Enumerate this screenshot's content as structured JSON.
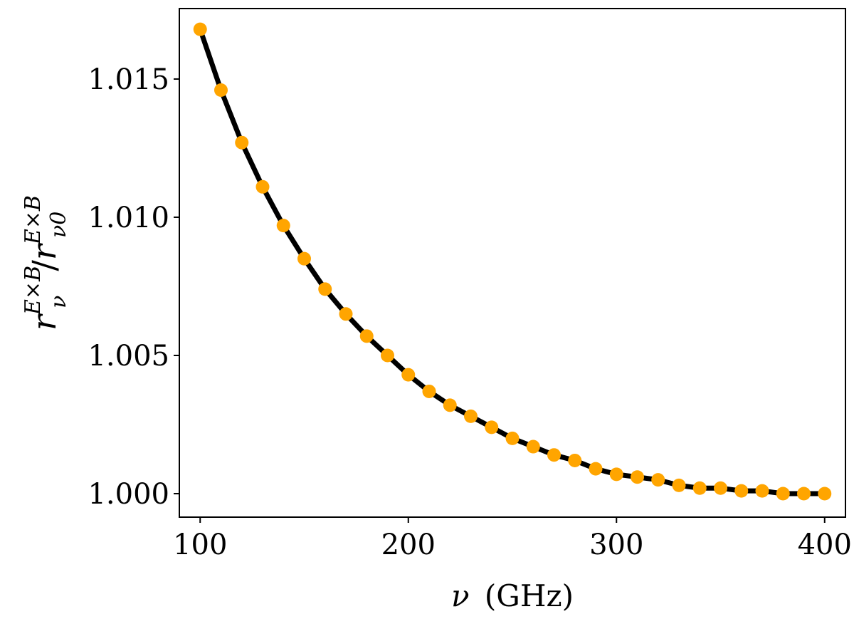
{
  "chart_data": {
    "type": "line",
    "title": "",
    "xlabel": {
      "symbol": "ν",
      "unit": "(GHz)"
    },
    "ylabel": {
      "r1": "r",
      "sub1": "ν",
      "sup1": "E×B",
      "slash": "/",
      "r2": "r",
      "sub2": "ν0",
      "sup2": "E×B"
    },
    "xlim": [
      90,
      410
    ],
    "ylim": [
      0.99915,
      1.01755
    ],
    "xticks": [
      100,
      200,
      300,
      400
    ],
    "xtick_labels": [
      "100",
      "200",
      "300",
      "400"
    ],
    "yticks": [
      1.0,
      1.005,
      1.01,
      1.015
    ],
    "ytick_labels": [
      "1.000",
      "1.005",
      "1.010",
      "1.015"
    ],
    "grid": false,
    "legend": "none",
    "series": [
      {
        "style": "line",
        "color": "#000000",
        "x": [
          100,
          110,
          120,
          130,
          140,
          150,
          160,
          170,
          180,
          190,
          200,
          210,
          220,
          230,
          240,
          250,
          260,
          270,
          280,
          290,
          300,
          310,
          320,
          330,
          340,
          350,
          360,
          370,
          380,
          390,
          400
        ],
        "y": [
          1.0168,
          1.0146,
          1.0127,
          1.0111,
          1.0097,
          1.0085,
          1.0074,
          1.0065,
          1.0057,
          1.005,
          1.0043,
          1.0037,
          1.0032,
          1.0028,
          1.0024,
          1.002,
          1.0017,
          1.0014,
          1.0012,
          1.0009,
          1.0007,
          1.0006,
          1.0005,
          1.0003,
          1.0002,
          1.0002,
          1.0001,
          1.0001,
          1.0,
          1.0,
          1.0
        ]
      },
      {
        "style": "markers",
        "color": "#ffa500",
        "x": [
          100,
          110,
          120,
          130,
          140,
          150,
          160,
          170,
          180,
          190,
          200,
          210,
          220,
          230,
          240,
          250,
          260,
          270,
          280,
          290,
          300,
          310,
          320,
          330,
          340,
          350,
          360,
          370,
          380,
          390,
          400
        ],
        "y": [
          1.0168,
          1.0146,
          1.0127,
          1.0111,
          1.0097,
          1.0085,
          1.0074,
          1.0065,
          1.0057,
          1.005,
          1.0043,
          1.0037,
          1.0032,
          1.0028,
          1.0024,
          1.002,
          1.0017,
          1.0014,
          1.0012,
          1.0009,
          1.0007,
          1.0006,
          1.0005,
          1.0003,
          1.0002,
          1.0002,
          1.0001,
          1.0001,
          1.0,
          1.0,
          1.0
        ]
      }
    ]
  }
}
